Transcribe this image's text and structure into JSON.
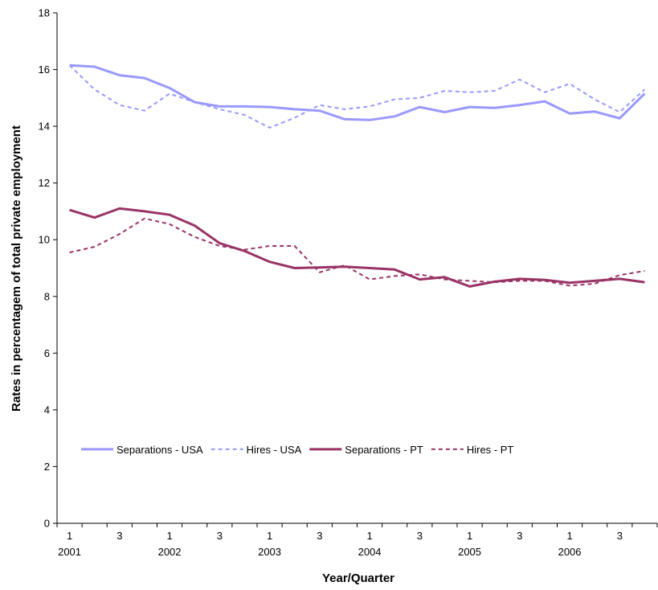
{
  "chart_data": {
    "type": "line",
    "y_label": "Rates in percentagem of total private employment",
    "x_label": "Year/Quarter",
    "categories": [
      "1",
      null,
      "3",
      null,
      "1",
      null,
      "3",
      null,
      "1",
      null,
      "3",
      null,
      "1",
      null,
      "3",
      null,
      "1",
      null,
      "3",
      null,
      "1",
      null,
      "3",
      null
    ],
    "years": [
      "2001",
      null,
      null,
      null,
      "2002",
      null,
      null,
      null,
      "2003",
      null,
      null,
      null,
      "2004",
      null,
      null,
      null,
      "2005",
      null,
      null,
      null,
      "2006",
      null,
      null,
      null
    ],
    "ylim": [
      0,
      18
    ],
    "yticks": [
      0,
      2,
      4,
      6,
      8,
      10,
      12,
      14,
      16,
      18
    ],
    "grid": false,
    "legend": "inside-lower-left",
    "series": [
      {
        "name": "Separations - USA",
        "color": "#9999ff",
        "dashed": false,
        "values": [
          16.15,
          16.1,
          15.8,
          15.7,
          15.35,
          14.85,
          14.7,
          14.7,
          14.68,
          14.6,
          14.55,
          14.25,
          14.22,
          14.35,
          14.68,
          14.5,
          14.68,
          14.65,
          14.75,
          14.88,
          14.45,
          14.52,
          14.28,
          15.15
        ]
      },
      {
        "name": "Hires - USA",
        "color": "#9999ff",
        "dashed": true,
        "values": [
          16.15,
          15.3,
          14.75,
          14.55,
          15.15,
          14.85,
          14.6,
          14.4,
          13.95,
          14.3,
          14.75,
          14.6,
          14.7,
          14.95,
          15.0,
          15.25,
          15.2,
          15.25,
          15.65,
          15.2,
          15.5,
          14.95,
          14.5,
          15.3
        ]
      },
      {
        "name": "Separations - PT",
        "color": "#993366",
        "dashed": false,
        "values": [
          11.05,
          10.78,
          11.1,
          11.0,
          10.88,
          10.5,
          9.88,
          9.6,
          9.22,
          9.0,
          9.02,
          9.05,
          9.0,
          8.95,
          8.6,
          8.68,
          8.35,
          8.52,
          8.62,
          8.58,
          8.48,
          8.55,
          8.62,
          8.5
        ]
      },
      {
        "name": "Hires - PT",
        "color": "#993366",
        "dashed": true,
        "values": [
          9.55,
          9.75,
          10.2,
          10.75,
          10.55,
          10.1,
          9.78,
          9.65,
          9.78,
          9.78,
          8.85,
          9.1,
          8.6,
          8.72,
          8.78,
          8.6,
          8.55,
          8.5,
          8.55,
          8.55,
          8.38,
          8.45,
          8.75,
          8.9
        ]
      }
    ]
  }
}
